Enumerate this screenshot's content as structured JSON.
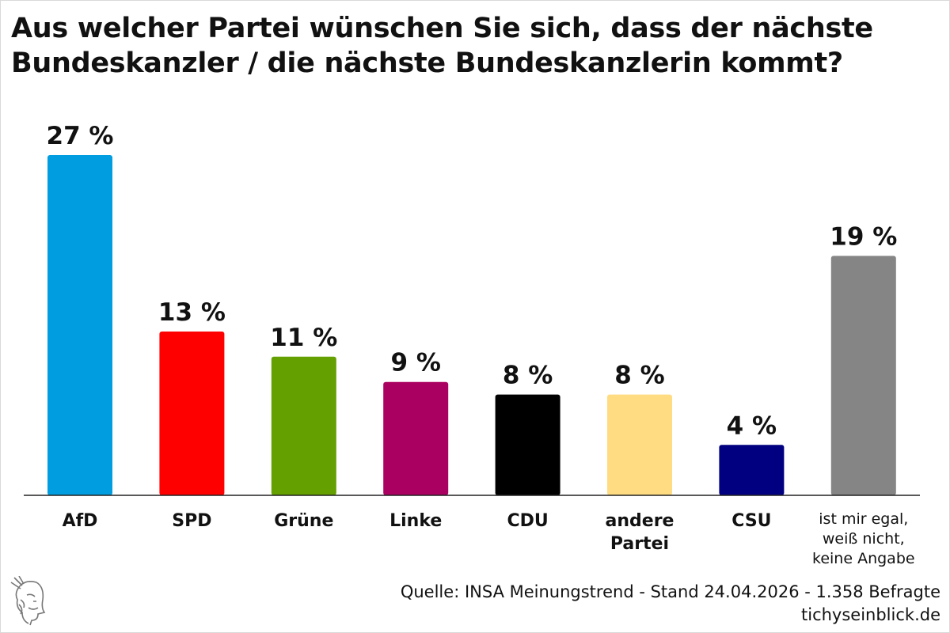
{
  "title": "Aus welcher Partei wünschen Sie sich, dass der nächste Bundeskanzler / die nächste Bundeskanzlerin kommt?",
  "source": {
    "line1": "Quelle: INSA Meinungstrend - Stand 24.04.2026 - 1.358 Befragte",
    "line2": "tichyseinblick.de"
  },
  "logo_icon": "hermes-head-icon",
  "chart_data": {
    "type": "bar",
    "title": "Aus welcher Partei wünschen Sie sich, dass der nächste Bundeskanzler / die nächste Bundeskanzlerin kommt?",
    "xlabel": "",
    "ylabel": "",
    "ylim": [
      0,
      27
    ],
    "grid": false,
    "value_suffix": " %",
    "categories": [
      "AfD",
      "SPD",
      "Grüne",
      "Linke",
      "CDU",
      "andere Partei",
      "CSU",
      "ist mir egal, weiß nicht, keine Angabe"
    ],
    "category_lines": [
      [
        "AfD"
      ],
      [
        "SPD"
      ],
      [
        "Grüne"
      ],
      [
        "Linke"
      ],
      [
        "CDU"
      ],
      [
        "andere",
        "Partei"
      ],
      [
        "CSU"
      ],
      [
        "ist mir egal,",
        "weiß nicht,",
        "keine Angabe"
      ]
    ],
    "values": [
      27,
      13,
      11,
      9,
      8,
      8,
      4,
      19
    ],
    "value_labels": [
      "27 %",
      "13 %",
      "11 %",
      "9 %",
      "8 %",
      "8 %",
      "4 %",
      "19 %"
    ],
    "colors": [
      "#009ee0",
      "#ff0000",
      "#64a000",
      "#aa0061",
      "#000000",
      "#ffdc82",
      "#000080",
      "#858585"
    ]
  }
}
